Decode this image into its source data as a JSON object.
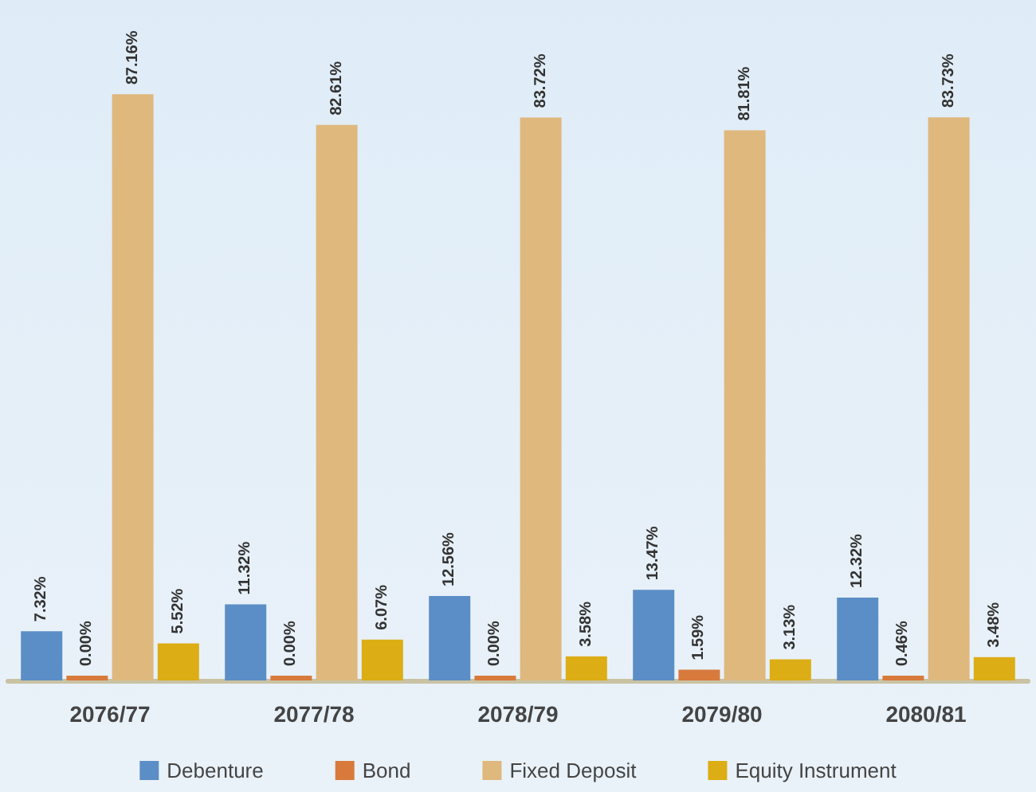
{
  "chart_data": {
    "type": "bar",
    "categories": [
      "2076/77",
      "2077/78",
      "2078/79",
      "2079/80",
      "2080/81"
    ],
    "series": [
      {
        "name": "Debenture",
        "color": "#5b8ec6",
        "values": [
          7.32,
          11.32,
          12.56,
          13.47,
          12.32
        ],
        "value_labels": [
          "7.32%",
          "11.32%",
          "12.56%",
          "13.47%",
          "12.32%"
        ]
      },
      {
        "name": "Bond",
        "color": "#d87a3c",
        "values": [
          0,
          0,
          0,
          1.59,
          0.46
        ],
        "value_labels": [
          "0.00%",
          "0.00%",
          "0.00%",
          "1.59%",
          "0.46%"
        ]
      },
      {
        "name": "Fixed Deposit",
        "color": "#dfb87e",
        "values": [
          87.16,
          82.61,
          83.72,
          81.81,
          83.73
        ],
        "value_labels": [
          "87.16%",
          "82.61%",
          "83.72%",
          "81.81%",
          "83.73%"
        ]
      },
      {
        "name": "Equity Instrument",
        "color": "#dcad14",
        "values": [
          5.52,
          6.07,
          3.58,
          3.13,
          3.48
        ],
        "value_labels": [
          "5.52%",
          "6.07%",
          "3.58%",
          "3.13%",
          "3.48%"
        ]
      }
    ],
    "legend": "bottom",
    "grid": false
  }
}
